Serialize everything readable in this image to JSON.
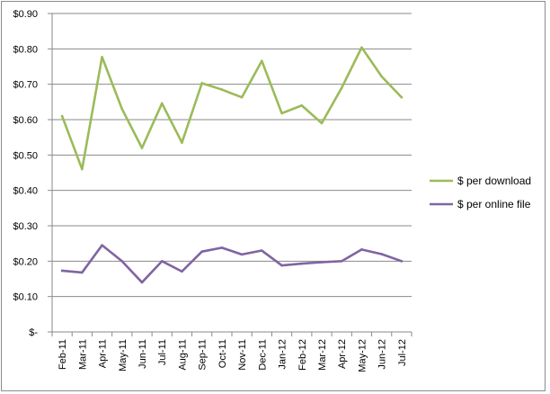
{
  "chart_data": {
    "type": "line",
    "title": "",
    "xlabel": "",
    "ylabel": "",
    "categories": [
      "Feb-11",
      "Mar-11",
      "Apr-11",
      "May-11",
      "Jun-11",
      "Jul-11",
      "Aug-11",
      "Sep-11",
      "Oct-11",
      "Nov-11",
      "Dec-11",
      "Jan-12",
      "Feb-12",
      "Mar-12",
      "Apr-12",
      "May-12",
      "Jun-12",
      "Jul-12"
    ],
    "ylim": [
      0,
      0.9
    ],
    "yticks": [
      0,
      0.1,
      0.2,
      0.3,
      0.4,
      0.5,
      0.6,
      0.7,
      0.8,
      0.9
    ],
    "ytick_labels": [
      "$-",
      "$0.10",
      "$0.20",
      "$0.30",
      "$0.40",
      "$0.50",
      "$0.60",
      "$0.70",
      "$0.80",
      "$0.90"
    ],
    "grid": true,
    "legend_position": "right",
    "series": [
      {
        "name": "$ per download",
        "color": "#9bbb59",
        "values": [
          0.61,
          0.46,
          0.777,
          0.63,
          0.52,
          0.646,
          0.535,
          0.703,
          0.685,
          0.663,
          0.766,
          0.618,
          0.64,
          0.59,
          0.69,
          0.804,
          0.722,
          0.663
        ]
      },
      {
        "name": "$ per online file",
        "color": "#8064a2",
        "values": [
          0.173,
          0.168,
          0.245,
          0.2,
          0.14,
          0.2,
          0.171,
          0.227,
          0.238,
          0.219,
          0.23,
          0.188,
          0.193,
          0.197,
          0.2,
          0.233,
          0.22,
          0.2
        ]
      }
    ]
  }
}
